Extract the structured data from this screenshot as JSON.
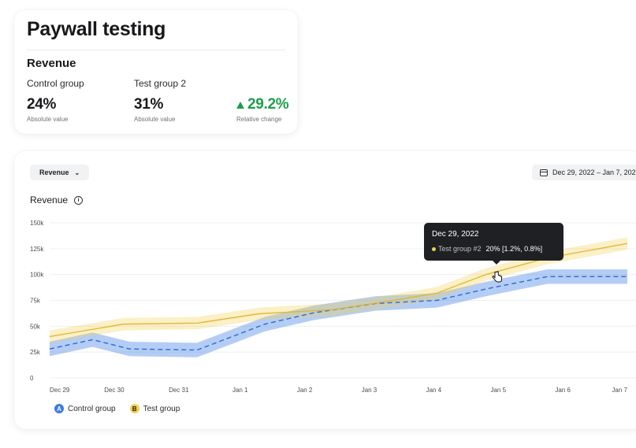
{
  "summary": {
    "title": "Paywall testing",
    "section": "Revenue",
    "control": {
      "label": "Control group",
      "value": "24%",
      "caption": "Absolute value"
    },
    "test": {
      "label": "Test group 2",
      "value": "31%",
      "caption": "Absolute value"
    },
    "relative": {
      "value": "29.2%",
      "caption": "Relative change",
      "direction": "up",
      "color": "#1e9e4a"
    }
  },
  "toolbar": {
    "metric_select": "Revenue",
    "date_range": "Dec 29, 2022 – Jan 7, 202"
  },
  "chart_title": "Revenue",
  "tooltip": {
    "date": "Dec 29, 2022",
    "series": "Test group #2",
    "value": "20% [1.2%, 0.8%]"
  },
  "legend": [
    {
      "badge": "A",
      "label": "Control group",
      "color": "#3a7be6"
    },
    {
      "badge": "B",
      "label": "Test group",
      "color": "#f2cf4f"
    }
  ],
  "chart_data": {
    "type": "line",
    "ylabel": "",
    "xlabel": "",
    "ylim": [
      0,
      150000
    ],
    "yticks": [
      "0",
      "25k",
      "50k",
      "75k",
      "100k",
      "125k",
      "150k"
    ],
    "categories": [
      "Dec 29",
      "",
      "Dec 30",
      "",
      "Dec 31",
      "",
      "Jan 1",
      "",
      "Jan 2",
      "",
      "Jan 3",
      "",
      "Jan 4",
      "",
      "Jan 5",
      "",
      "Jan 6",
      "",
      "Jan 7"
    ],
    "x_index": [
      0,
      0.4,
      1,
      1.5,
      2,
      2.4,
      3,
      3.5,
      4,
      4.5,
      5,
      5.5,
      6,
      6.5,
      7,
      7.5,
      8,
      8.5,
      9.1
    ],
    "series": [
      {
        "name": "Control group",
        "color": "#3a7be6",
        "style": "dashed",
        "values": [
          28000,
          37000,
          28000,
          27000,
          52000,
          63000,
          72000,
          75000,
          86000,
          98000,
          98000
        ],
        "x": [
          0,
          0.7,
          1.3,
          2.4,
          3.5,
          4.3,
          5.3,
          6.3,
          7.1,
          8.1,
          9.4
        ],
        "band": 7000
      },
      {
        "name": "Test group",
        "color": "#f2cf4f",
        "style": "solid",
        "values": [
          40000,
          52000,
          53000,
          62000,
          66000,
          75000,
          82000,
          100000,
          116000,
          130000
        ],
        "x": [
          0,
          1.2,
          2.4,
          3.4,
          4.6,
          5.6,
          6.3,
          7.1,
          8.1,
          9.4
        ],
        "band": 6000
      }
    ],
    "xtick_labels": [
      "Dec 29",
      "Dec 30",
      "Dec 31",
      "Jan 1",
      "Jan 2",
      "Jan 3",
      "Jan 4",
      "Jan 5",
      "Jan 6",
      "Jan 7"
    ],
    "grid": true,
    "legend_position": "bottom-left"
  }
}
